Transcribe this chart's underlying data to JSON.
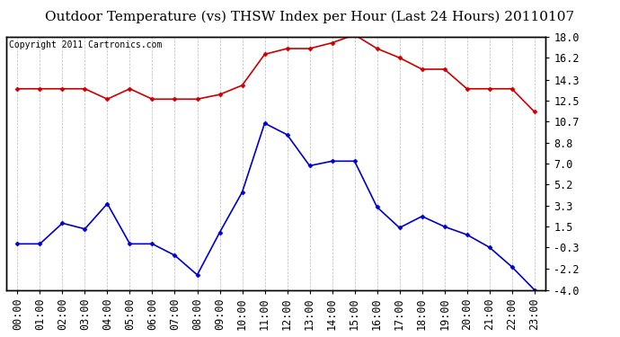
{
  "title": "Outdoor Temperature (vs) THSW Index per Hour (Last 24 Hours) 20110107",
  "copyright": "Copyright 2011 Cartronics.com",
  "hours": [
    "00:00",
    "01:00",
    "02:00",
    "03:00",
    "04:00",
    "05:00",
    "06:00",
    "07:00",
    "08:00",
    "09:00",
    "10:00",
    "11:00",
    "12:00",
    "13:00",
    "14:00",
    "15:00",
    "16:00",
    "17:00",
    "18:00",
    "19:00",
    "20:00",
    "21:00",
    "22:00",
    "23:00"
  ],
  "temp_blue": [
    0.0,
    0.0,
    1.8,
    1.3,
    3.5,
    0.0,
    0.0,
    -1.0,
    -2.7,
    1.0,
    4.5,
    10.5,
    9.5,
    6.8,
    7.2,
    7.2,
    3.2,
    1.4,
    2.4,
    1.5,
    0.8,
    -0.3,
    -2.0,
    -4.0
  ],
  "thsw_red": [
    13.5,
    13.5,
    13.5,
    13.5,
    12.6,
    13.5,
    12.6,
    12.6,
    12.6,
    13.0,
    13.8,
    16.5,
    17.0,
    17.0,
    17.5,
    18.2,
    17.0,
    16.2,
    15.2,
    15.2,
    13.5,
    13.5,
    13.5,
    11.5
  ],
  "yticks_right": [
    18.0,
    16.2,
    14.3,
    12.5,
    10.7,
    8.8,
    7.0,
    5.2,
    3.3,
    1.5,
    -0.3,
    -2.2,
    -4.0
  ],
  "ymin": -4.0,
  "ymax": 18.0,
  "bg_color": "#ffffff",
  "grid_color": "#bbbbbb",
  "blue_color": "#0000cc",
  "red_color": "#cc0000",
  "title_fontsize": 11,
  "copyright_fontsize": 7,
  "tick_fontsize": 8.5
}
